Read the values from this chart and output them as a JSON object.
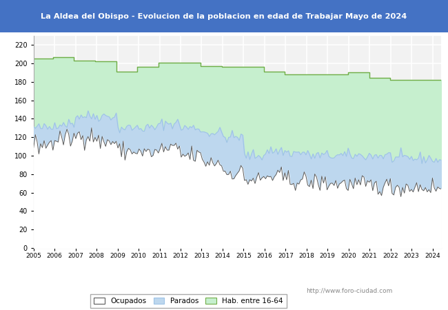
{
  "title": "La Aldea del Obispo - Evolucion de la poblacion en edad de Trabajar Mayo de 2024",
  "title_bg_color": "#4472c4",
  "title_text_color": "white",
  "ylim": [
    0,
    230
  ],
  "yticks": [
    0,
    20,
    40,
    60,
    80,
    100,
    120,
    140,
    160,
    180,
    200,
    220
  ],
  "color_hab": "#c6efce",
  "color_hab_line": "#70ad47",
  "color_parados_fill": "#bdd7ee",
  "color_parados_line": "#9dc3e6",
  "color_ocupados": "#595959",
  "watermark": "http://www.foro-ciudad.com",
  "legend_labels": [
    "Ocupados",
    "Parados",
    "Hab. entre 16-64"
  ],
  "plot_bg": "#f2f2f2",
  "grid_color": "white",
  "hab_annual": [
    205,
    207,
    203,
    202,
    191,
    196,
    201,
    201,
    197,
    196,
    196,
    191,
    188,
    188,
    188,
    190,
    184,
    182,
    182,
    182
  ],
  "parados_annual": [
    130,
    135,
    143,
    143,
    130,
    130,
    135,
    130,
    125,
    120,
    100,
    105,
    103,
    100,
    100,
    100,
    100,
    97,
    97,
    95
  ],
  "ocupados_annual": [
    112,
    118,
    122,
    115,
    105,
    103,
    107,
    100,
    93,
    82,
    74,
    77,
    73,
    71,
    70,
    68,
    67,
    66,
    66,
    65
  ]
}
